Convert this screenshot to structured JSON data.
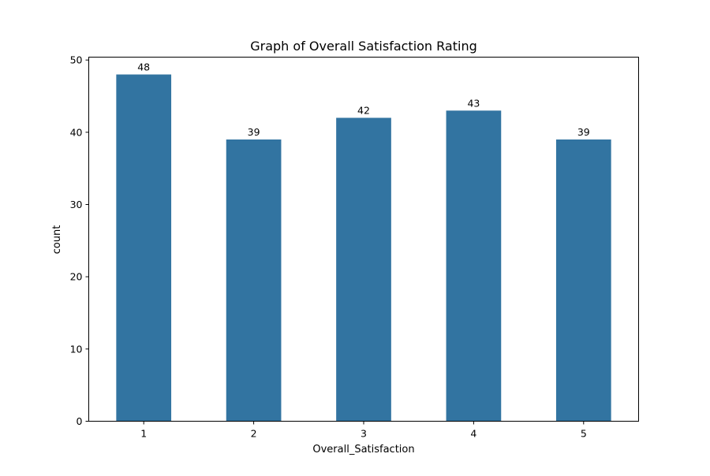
{
  "chart_data": {
    "type": "bar",
    "title": "Graph of Overall Satisfaction Rating",
    "xlabel": "Overall_Satisfaction",
    "ylabel": "count",
    "categories": [
      "1",
      "2",
      "3",
      "4",
      "5"
    ],
    "values": [
      48,
      39,
      42,
      43,
      39
    ],
    "ylim": [
      0,
      50.4
    ],
    "yticks": [
      0,
      10,
      20,
      30,
      40,
      50
    ],
    "bar_color": "#3274a1",
    "grid": false,
    "legend": "none"
  }
}
